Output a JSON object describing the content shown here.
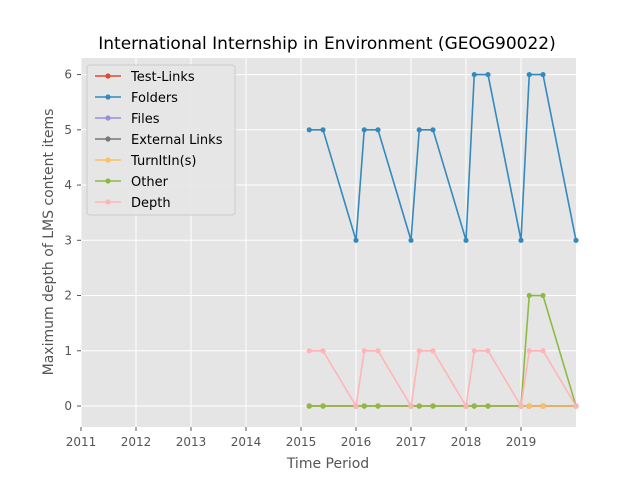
{
  "chart_data": {
    "type": "line",
    "title": "International Internship in Environment (GEOG90022)",
    "xlabel": "Time Period",
    "ylabel": "Maximum depth of LMS content items",
    "xlim": [
      2011.0,
      2020.0
    ],
    "ylim": [
      -0.38,
      6.3
    ],
    "x_ticks": [
      2011,
      2012,
      2013,
      2014,
      2015,
      2016,
      2017,
      2018,
      2019
    ],
    "y_ticks": [
      0,
      1,
      2,
      3,
      4,
      5,
      6
    ],
    "grid": true,
    "legend_position": "top-left",
    "x": [
      2015.15,
      2015.4,
      2016.0,
      2016.15,
      2016.4,
      2017.0,
      2017.15,
      2017.4,
      2018.0,
      2018.15,
      2018.4,
      2019.0,
      2019.15,
      2019.4,
      2020.0
    ],
    "series": [
      {
        "name": "Test-Links",
        "color": "#e24a33",
        "values": [
          0,
          0,
          0,
          0,
          0,
          0,
          0,
          0,
          0,
          0,
          0,
          0,
          0,
          0,
          0
        ]
      },
      {
        "name": "Folders",
        "color": "#348abd",
        "values": [
          5,
          5,
          3,
          5,
          5,
          3,
          5,
          5,
          3,
          6,
          6,
          3,
          6,
          6,
          3
        ]
      },
      {
        "name": "Files",
        "color": "#988ed5",
        "values": [
          0,
          0,
          0,
          0,
          0,
          0,
          0,
          0,
          0,
          0,
          0,
          0,
          0,
          0,
          0
        ]
      },
      {
        "name": "External Links",
        "color": "#777777",
        "values": [
          0,
          0,
          0,
          0,
          0,
          0,
          0,
          0,
          0,
          0,
          0,
          0,
          0,
          0,
          0
        ]
      },
      {
        "name": "TurnItIn(s)",
        "color": "#fbc15e",
        "values": [
          0,
          0,
          0,
          0,
          0,
          0,
          0,
          0,
          0,
          0,
          0,
          0,
          0,
          0,
          0
        ]
      },
      {
        "name": "Other",
        "color": "#8eba42",
        "values": [
          0,
          0,
          0,
          0,
          0,
          0,
          0,
          0,
          0,
          0,
          0,
          0,
          2,
          2,
          0
        ]
      },
      {
        "name": "Depth",
        "color": "#ffb5b8",
        "values": [
          1,
          1,
          0,
          1,
          1,
          0,
          1,
          1,
          0,
          1,
          1,
          0,
          1,
          1,
          0
        ]
      }
    ]
  }
}
